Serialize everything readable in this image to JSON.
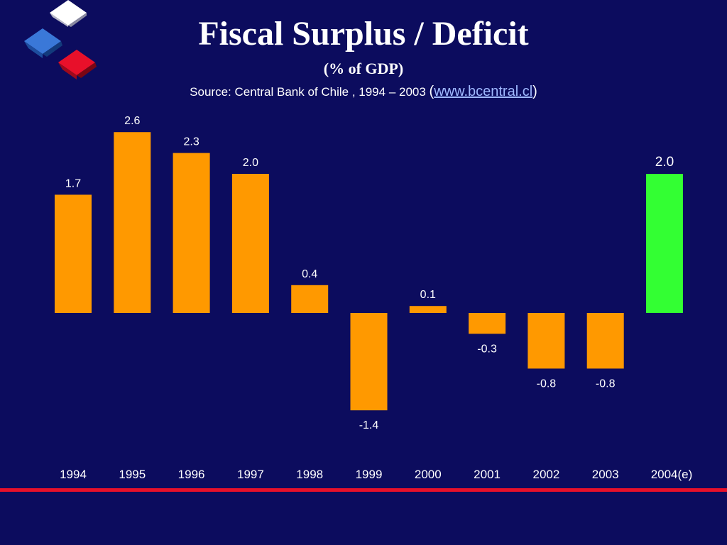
{
  "slide": {
    "title": "Fiscal Surplus / Deficit",
    "subtitle": "(% of GDP)",
    "source_text": "Source: Central Bank of Chile , 1994 – 2003 ",
    "source_paren_open": "(",
    "source_link": "www.bcentral.cl",
    "source_paren_close": ")"
  },
  "colors": {
    "background": "#0c0c5e",
    "bar_default": "#ff9900",
    "bar_estimate": "#33ff33",
    "text": "#ffffff",
    "accent_rule": "#e8102a"
  },
  "logo": {
    "icons": [
      "white-cube-icon",
      "blue-cube-icon",
      "red-cube-icon"
    ]
  },
  "chart_data": {
    "type": "bar",
    "title": "Fiscal Surplus / Deficit",
    "subtitle": "(% of GDP)",
    "xlabel": "",
    "ylabel": "",
    "categories": [
      "1994",
      "1995",
      "1996",
      "1997",
      "1998",
      "1999",
      "2000",
      "2001",
      "2002",
      "2003",
      "2004(e)"
    ],
    "values": [
      1.7,
      2.6,
      2.3,
      2.0,
      0.4,
      -1.4,
      0.1,
      -0.3,
      -0.8,
      -0.8,
      2.0
    ],
    "data_labels": [
      "1.7",
      "2.6",
      "2.3",
      "2.0",
      "0.4",
      "-1.4",
      "0.1",
      "-0.3",
      "-0.8",
      "-0.8",
      "2.0"
    ],
    "highlight_index": 10,
    "ylim": [
      -1.5,
      2.8
    ],
    "grid": false,
    "legend": "none"
  }
}
